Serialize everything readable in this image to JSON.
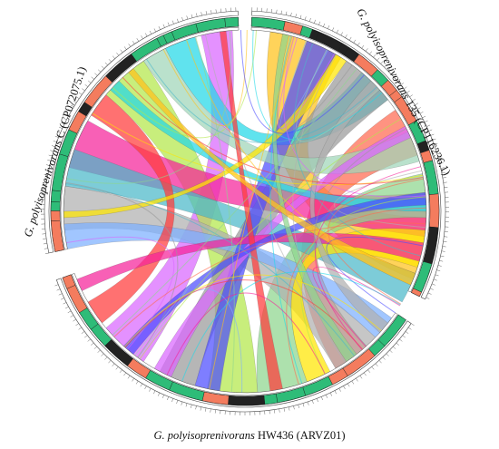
{
  "genomes": [
    {
      "id": "c",
      "label_italic": "G. polyisoprenivorans",
      "label_rest": " C (CP072075.1)",
      "start_deg": -102,
      "end_deg": -2
    },
    {
      "id": "s135",
      "label_italic": "G. polyisoprenivorans",
      "label_rest": " 135 (CP116236.1)",
      "start_deg": 2,
      "end_deg": 116
    },
    {
      "id": "hw436",
      "label_italic": "G. polyisoprenivorans",
      "label_rest": " HW436 (ARVZ01)",
      "start_deg": 124,
      "end_deg": 250
    }
  ],
  "palette": {
    "contig_green": "#2ebc78",
    "contig_salmon": "#f47c5e",
    "contig_dark": "#222222",
    "ribbons": [
      "#d966ff",
      "#ffc21a",
      "#b3e84a",
      "#22d8e8",
      "#ff6a50",
      "#f5229a",
      "#8ed68e",
      "#b0b0b0",
      "#4bb8c9",
      "#9a9a9a",
      "#7db0ff",
      "#ffe600",
      "#ff3a3a",
      "#4c4cff",
      "#9fd6b8"
    ]
  }
}
